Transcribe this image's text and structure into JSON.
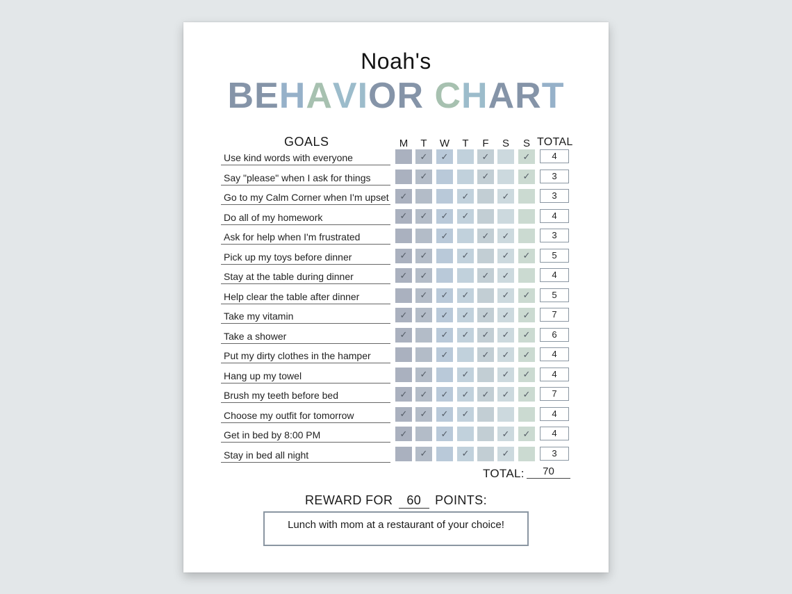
{
  "owner": "Noah's",
  "title_letters": [
    {
      "ch": "B",
      "color": "#8594a8"
    },
    {
      "ch": "E",
      "color": "#8594a8"
    },
    {
      "ch": "H",
      "color": "#96b1c9"
    },
    {
      "ch": "A",
      "color": "#a7c1b0"
    },
    {
      "ch": "V",
      "color": "#9cbccb"
    },
    {
      "ch": "I",
      "color": "#9cbccb"
    },
    {
      "ch": "O",
      "color": "#8594a8"
    },
    {
      "ch": "R",
      "color": "#8594a8"
    },
    {
      "ch": " ",
      "color": "#ffffff"
    },
    {
      "ch": "C",
      "color": "#a7c1b0"
    },
    {
      "ch": "H",
      "color": "#9cbccb"
    },
    {
      "ch": "A",
      "color": "#8594a8"
    },
    {
      "ch": "R",
      "color": "#8594a8"
    },
    {
      "ch": "T",
      "color": "#96b1c9"
    }
  ],
  "goals_header": "GOALS",
  "days": [
    "M",
    "T",
    "W",
    "T",
    "F",
    "S",
    "S"
  ],
  "day_colors": [
    "#aab1bf",
    "#b3bcc8",
    "#b9c9d9",
    "#c1d1dc",
    "#c2ced4",
    "#ccd9de",
    "#cbdad1"
  ],
  "total_header": "TOTAL",
  "check_glyph": "✓",
  "rows": [
    {
      "goal": "Use kind words with everyone",
      "checks": [
        0,
        1,
        1,
        0,
        1,
        0,
        1
      ],
      "total": "4"
    },
    {
      "goal": "Say \"please\" when I ask for things",
      "checks": [
        0,
        1,
        0,
        0,
        1,
        0,
        1
      ],
      "total": "3"
    },
    {
      "goal": "Go to my Calm Corner when I'm upset",
      "checks": [
        1,
        0,
        0,
        1,
        0,
        1,
        0
      ],
      "total": "3"
    },
    {
      "goal": "Do all of my homework",
      "checks": [
        1,
        1,
        1,
        1,
        0,
        0,
        0
      ],
      "total": "4"
    },
    {
      "goal": "Ask for help when I'm frustrated",
      "checks": [
        0,
        0,
        1,
        0,
        1,
        1,
        0
      ],
      "total": "3"
    },
    {
      "goal": "Pick up my toys before dinner",
      "checks": [
        1,
        1,
        0,
        1,
        0,
        1,
        1
      ],
      "total": "5"
    },
    {
      "goal": "Stay at the table during dinner",
      "checks": [
        1,
        1,
        0,
        0,
        1,
        1,
        0
      ],
      "total": "4"
    },
    {
      "goal": "Help clear the table after dinner",
      "checks": [
        0,
        1,
        1,
        1,
        0,
        1,
        1
      ],
      "total": "5"
    },
    {
      "goal": "Take my vitamin",
      "checks": [
        1,
        1,
        1,
        1,
        1,
        1,
        1
      ],
      "total": "7"
    },
    {
      "goal": "Take a shower",
      "checks": [
        1,
        0,
        1,
        1,
        1,
        1,
        1
      ],
      "total": "6"
    },
    {
      "goal": "Put my dirty clothes in the hamper",
      "checks": [
        0,
        0,
        1,
        0,
        1,
        1,
        1
      ],
      "total": "4"
    },
    {
      "goal": "Hang up my towel",
      "checks": [
        0,
        1,
        0,
        1,
        0,
        1,
        1
      ],
      "total": "4"
    },
    {
      "goal": "Brush my teeth before bed",
      "checks": [
        1,
        1,
        1,
        1,
        1,
        1,
        1
      ],
      "total": "7"
    },
    {
      "goal": "Choose my outfit for tomorrow",
      "checks": [
        1,
        1,
        1,
        1,
        0,
        0,
        0
      ],
      "total": "4"
    },
    {
      "goal": "Get in bed by 8:00 PM",
      "checks": [
        1,
        0,
        1,
        0,
        0,
        1,
        1
      ],
      "total": "4"
    },
    {
      "goal": "Stay in bed all night",
      "checks": [
        0,
        1,
        0,
        1,
        0,
        1,
        0
      ],
      "total": "3"
    }
  ],
  "grand_total_label": "TOTAL:",
  "grand_total_value": "70",
  "reward_prefix": "REWARD FOR",
  "reward_points": "60",
  "reward_suffix": "POINTS:",
  "reward_text": "Lunch with mom at a restaurant of your choice!"
}
